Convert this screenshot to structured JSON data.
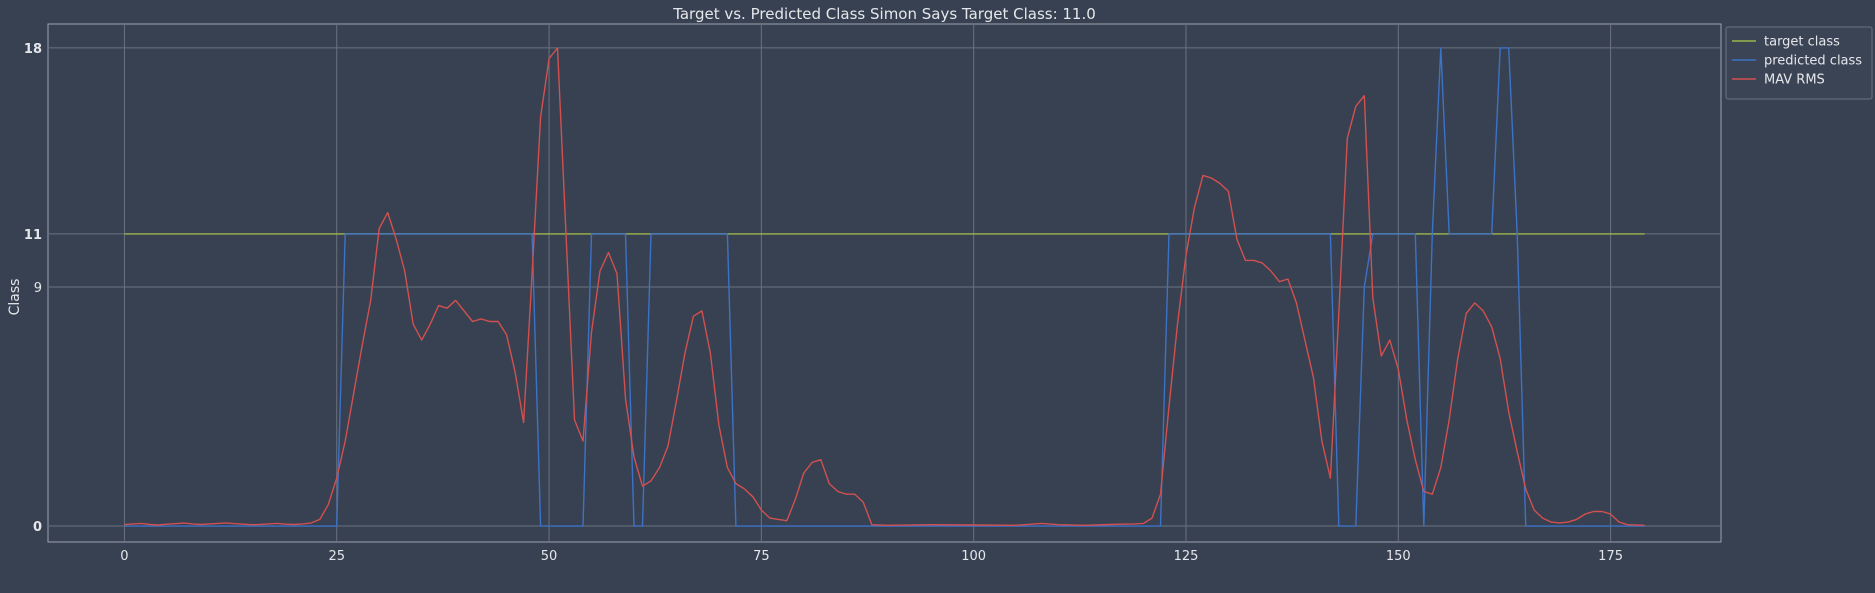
{
  "chart_data": {
    "type": "line",
    "title": "Target vs. Predicted Class Simon Says Target Class: 11.0",
    "xlabel": "",
    "ylabel": "Class",
    "xlim": [
      -9,
      188
    ],
    "ylim": [
      -0.6,
      18.9
    ],
    "x_ticks": [
      0,
      25,
      50,
      75,
      100,
      125,
      150,
      175
    ],
    "y_ticks": [
      0,
      9,
      11,
      18
    ],
    "y_ticks_bold": [
      0,
      11,
      18
    ],
    "grid": true,
    "legend_position": "outside-top-right",
    "colors": {
      "background": "#374151",
      "grid": "#6b7280",
      "axes": "#9ca3af",
      "target": "#9bb54a",
      "predicted": "#3d72c7",
      "mav": "#d2504f"
    },
    "series": [
      {
        "name": "target class",
        "color": "#9bb54a",
        "points": [
          [
            0,
            11
          ],
          [
            179,
            11
          ]
        ]
      },
      {
        "name": "predicted class",
        "color": "#3d72c7",
        "points": [
          [
            0,
            0
          ],
          [
            25,
            0
          ],
          [
            26,
            11
          ],
          [
            48,
            11
          ],
          [
            49,
            0
          ],
          [
            54,
            0
          ],
          [
            55,
            11
          ],
          [
            59,
            11
          ],
          [
            60,
            0
          ],
          [
            61,
            0
          ],
          [
            62,
            11
          ],
          [
            71,
            11
          ],
          [
            72,
            0
          ],
          [
            122,
            0
          ],
          [
            123,
            11
          ],
          [
            142,
            11
          ],
          [
            143,
            0
          ],
          [
            145,
            0
          ],
          [
            146,
            9
          ],
          [
            147,
            11
          ],
          [
            152,
            11
          ],
          [
            153,
            0
          ],
          [
            154,
            11
          ],
          [
            155,
            18
          ],
          [
            156,
            11
          ],
          [
            161,
            11
          ],
          [
            162,
            18
          ],
          [
            163,
            18
          ],
          [
            164,
            11
          ],
          [
            165,
            0
          ],
          [
            179,
            0
          ]
        ]
      },
      {
        "name": "MAV RMS",
        "color": "#d2504f",
        "points": [
          [
            0,
            0.05
          ],
          [
            1,
            0.08
          ],
          [
            2,
            0.1
          ],
          [
            3,
            0.06
          ],
          [
            4,
            0.04
          ],
          [
            5,
            0.07
          ],
          [
            6,
            0.09
          ],
          [
            7,
            0.11
          ],
          [
            8,
            0.08
          ],
          [
            9,
            0.06
          ],
          [
            10,
            0.08
          ],
          [
            11,
            0.1
          ],
          [
            12,
            0.12
          ],
          [
            13,
            0.09
          ],
          [
            14,
            0.07
          ],
          [
            15,
            0.05
          ],
          [
            16,
            0.06
          ],
          [
            17,
            0.08
          ],
          [
            18,
            0.1
          ],
          [
            19,
            0.07
          ],
          [
            20,
            0.06
          ],
          [
            21,
            0.08
          ],
          [
            22,
            0.12
          ],
          [
            23,
            0.25
          ],
          [
            24,
            0.8
          ],
          [
            25,
            1.8
          ],
          [
            26,
            3.2
          ],
          [
            27,
            5.0
          ],
          [
            28,
            6.8
          ],
          [
            29,
            8.5
          ],
          [
            30,
            11.2
          ],
          [
            31,
            11.8
          ],
          [
            32,
            10.8
          ],
          [
            33,
            9.6
          ],
          [
            34,
            7.6
          ],
          [
            35,
            7.0
          ],
          [
            36,
            7.6
          ],
          [
            37,
            8.3
          ],
          [
            38,
            8.2
          ],
          [
            39,
            8.5
          ],
          [
            40,
            8.1
          ],
          [
            41,
            7.7
          ],
          [
            42,
            7.8
          ],
          [
            43,
            7.7
          ],
          [
            44,
            7.7
          ],
          [
            45,
            7.2
          ],
          [
            46,
            5.8
          ],
          [
            47,
            3.9
          ],
          [
            48,
            9.5
          ],
          [
            49,
            15.4
          ],
          [
            50,
            17.6
          ],
          [
            51,
            18.0
          ],
          [
            52,
            11.0
          ],
          [
            53,
            4.0
          ],
          [
            54,
            3.2
          ],
          [
            55,
            7.3
          ],
          [
            56,
            9.6
          ],
          [
            57,
            10.3
          ],
          [
            58,
            9.5
          ],
          [
            59,
            4.8
          ],
          [
            60,
            2.6
          ],
          [
            61,
            1.5
          ],
          [
            62,
            1.7
          ],
          [
            63,
            2.2
          ],
          [
            64,
            3.0
          ],
          [
            65,
            4.7
          ],
          [
            66,
            6.5
          ],
          [
            67,
            7.9
          ],
          [
            68,
            8.1
          ],
          [
            69,
            6.5
          ],
          [
            70,
            3.8
          ],
          [
            71,
            2.2
          ],
          [
            72,
            1.6
          ],
          [
            73,
            1.4
          ],
          [
            74,
            1.1
          ],
          [
            75,
            0.6
          ],
          [
            76,
            0.3
          ],
          [
            77,
            0.25
          ],
          [
            78,
            0.2
          ],
          [
            79,
            1.0
          ],
          [
            80,
            2.0
          ],
          [
            81,
            2.4
          ],
          [
            82,
            2.5
          ],
          [
            83,
            1.6
          ],
          [
            84,
            1.3
          ],
          [
            85,
            1.2
          ],
          [
            86,
            1.2
          ],
          [
            87,
            0.9
          ],
          [
            88,
            0.05
          ],
          [
            90,
            0.03
          ],
          [
            95,
            0.05
          ],
          [
            100,
            0.04
          ],
          [
            105,
            0.03
          ],
          [
            108,
            0.1
          ],
          [
            110,
            0.05
          ],
          [
            113,
            0.03
          ],
          [
            116,
            0.06
          ],
          [
            119,
            0.08
          ],
          [
            120,
            0.1
          ],
          [
            121,
            0.3
          ],
          [
            122,
            1.2
          ],
          [
            123,
            4.5
          ],
          [
            124,
            7.6
          ],
          [
            125,
            10.2
          ],
          [
            126,
            12.0
          ],
          [
            127,
            13.2
          ],
          [
            128,
            13.1
          ],
          [
            129,
            12.9
          ],
          [
            130,
            12.6
          ],
          [
            131,
            10.8
          ],
          [
            132,
            10.0
          ],
          [
            133,
            10.0
          ],
          [
            134,
            9.9
          ],
          [
            135,
            9.6
          ],
          [
            136,
            9.2
          ],
          [
            137,
            9.3
          ],
          [
            138,
            8.4
          ],
          [
            139,
            7.0
          ],
          [
            140,
            5.6
          ],
          [
            141,
            3.2
          ],
          [
            142,
            1.8
          ],
          [
            143,
            8.0
          ],
          [
            144,
            14.6
          ],
          [
            145,
            15.8
          ],
          [
            146,
            16.2
          ],
          [
            147,
            8.6
          ],
          [
            148,
            6.4
          ],
          [
            149,
            7.0
          ],
          [
            150,
            5.9
          ],
          [
            151,
            4.0
          ],
          [
            152,
            2.5
          ],
          [
            153,
            1.3
          ],
          [
            154,
            1.2
          ],
          [
            155,
            2.2
          ],
          [
            156,
            4.0
          ],
          [
            157,
            6.3
          ],
          [
            158,
            8.0
          ],
          [
            159,
            8.4
          ],
          [
            160,
            8.1
          ],
          [
            161,
            7.5
          ],
          [
            162,
            6.3
          ],
          [
            163,
            4.3
          ],
          [
            164,
            2.8
          ],
          [
            165,
            1.4
          ],
          [
            166,
            0.6
          ],
          [
            167,
            0.3
          ],
          [
            168,
            0.15
          ],
          [
            169,
            0.12
          ],
          [
            170,
            0.15
          ],
          [
            171,
            0.25
          ],
          [
            172,
            0.45
          ],
          [
            173,
            0.55
          ],
          [
            174,
            0.55
          ],
          [
            175,
            0.45
          ],
          [
            176,
            0.15
          ],
          [
            177,
            0.05
          ],
          [
            179,
            0.03
          ]
        ]
      }
    ]
  }
}
